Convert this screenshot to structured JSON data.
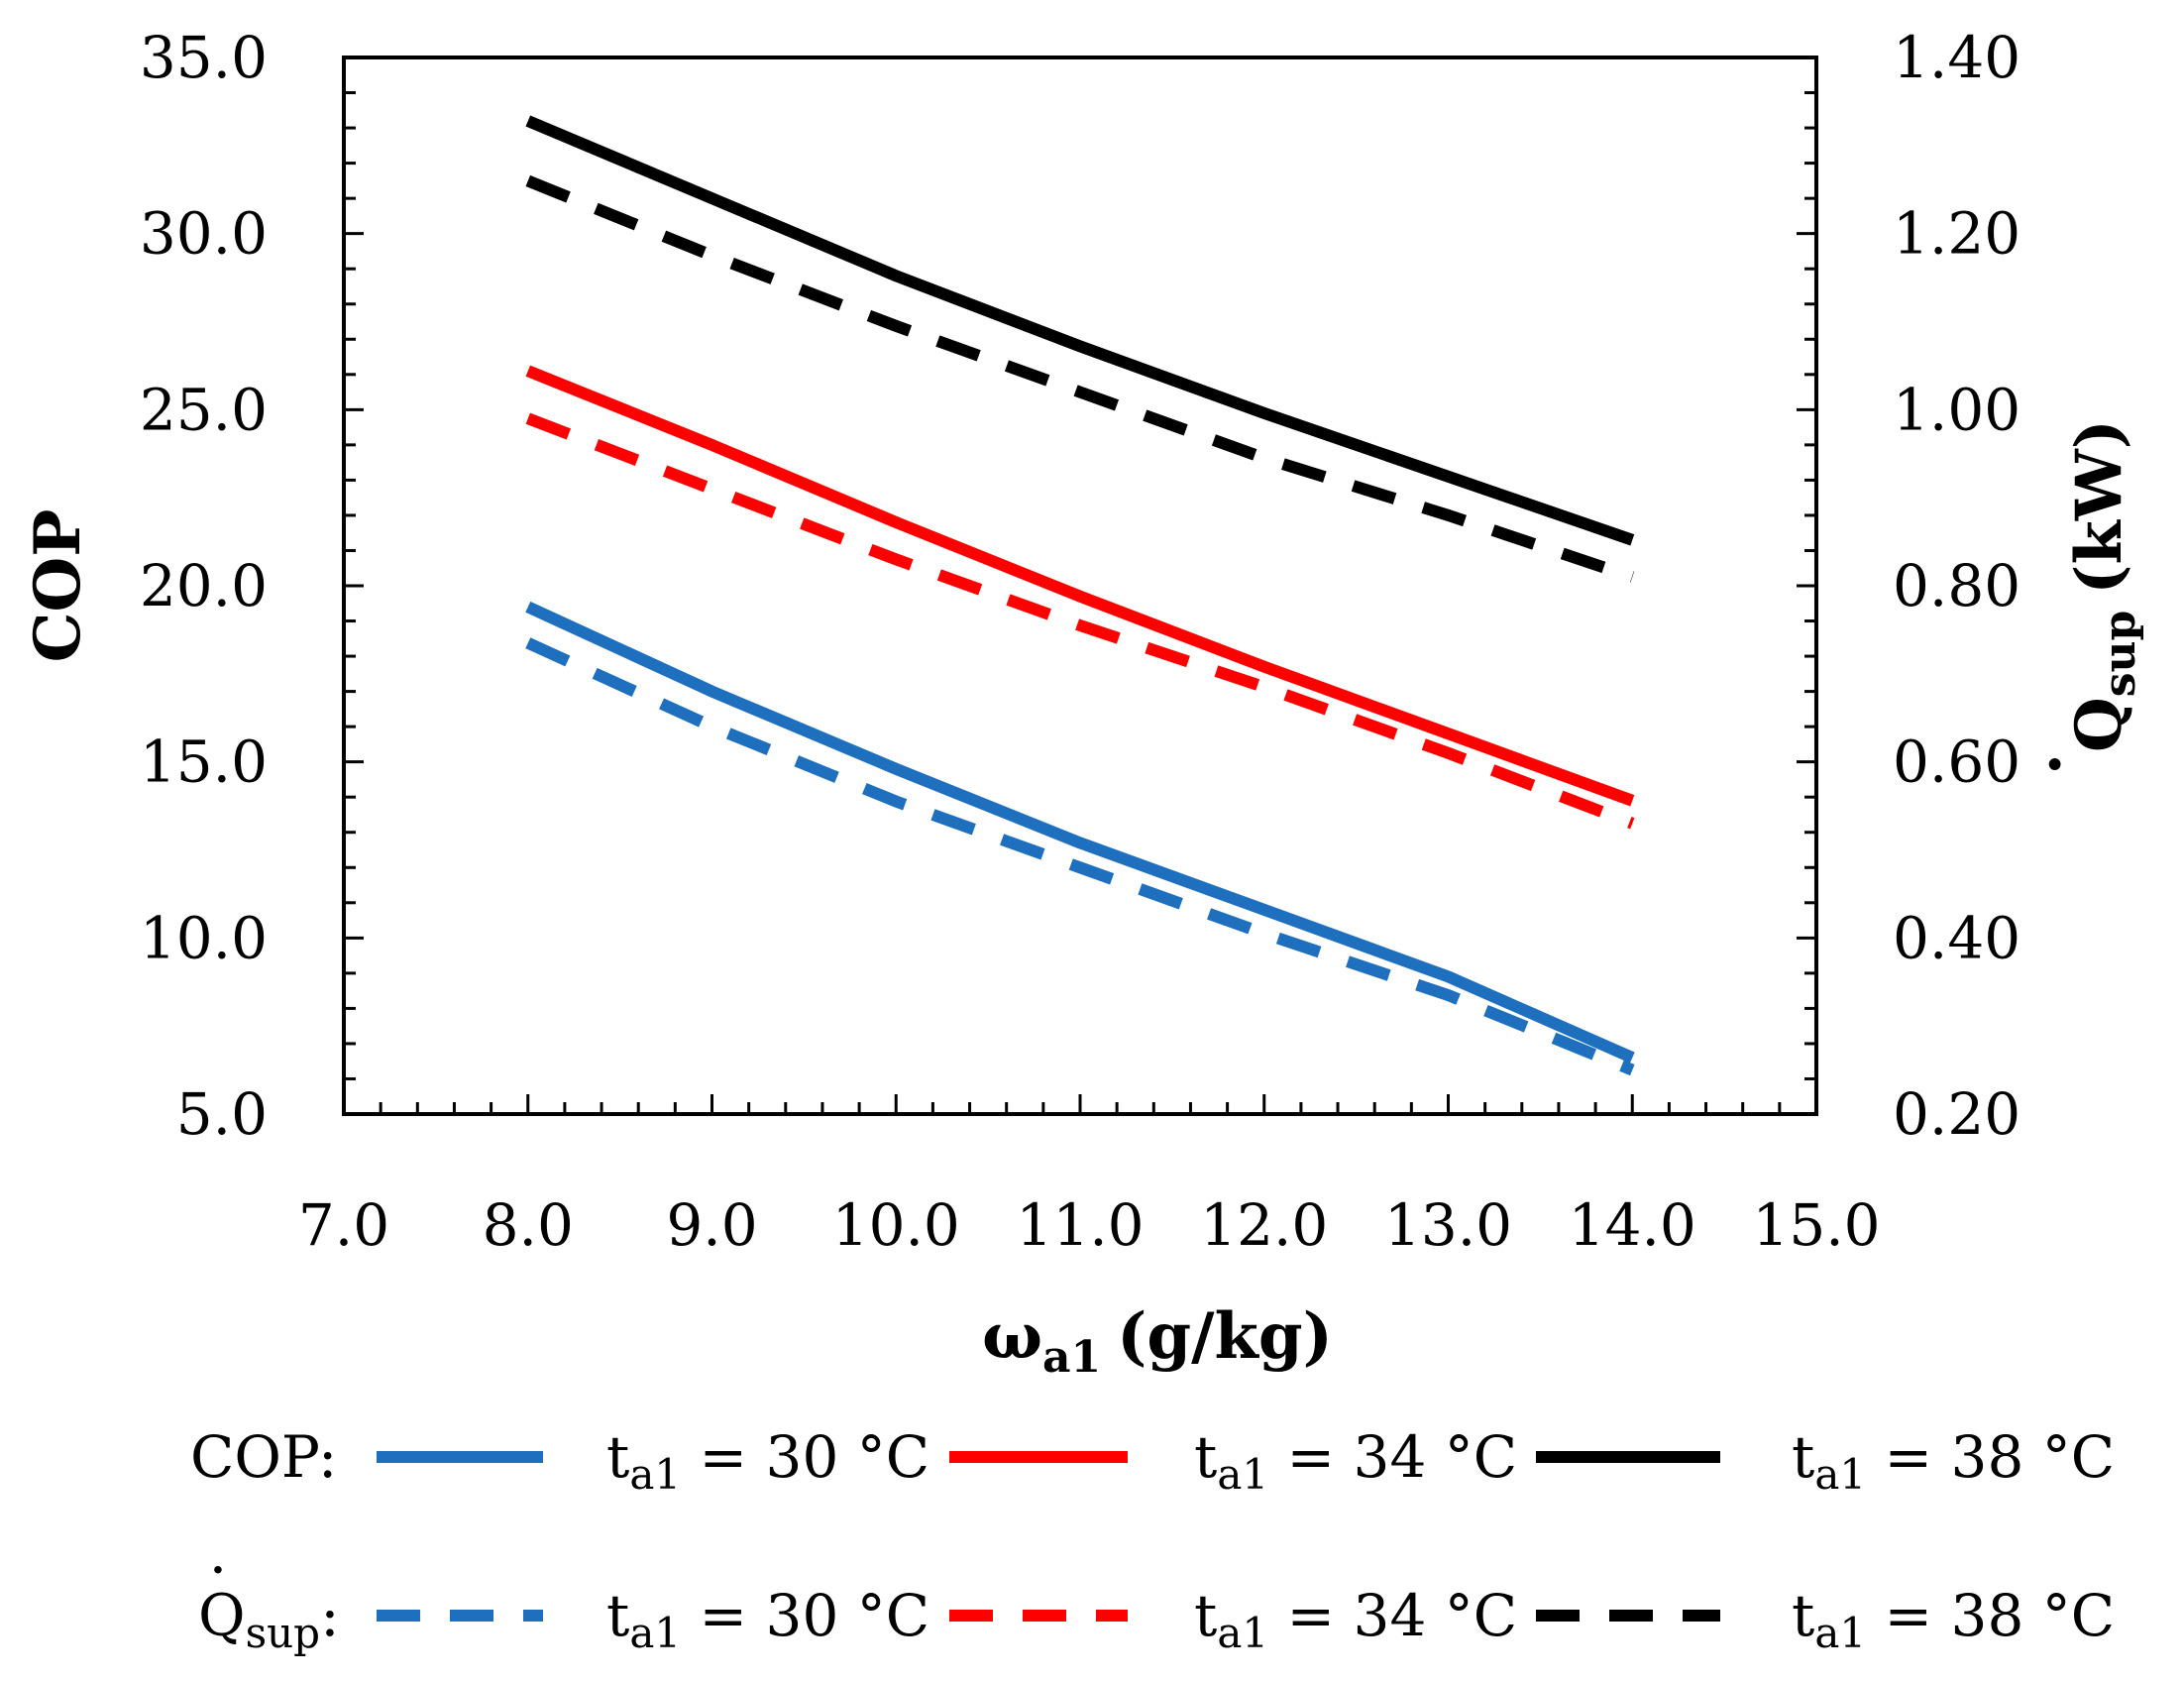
{
  "chart_data": {
    "type": "line",
    "x": [
      8,
      9,
      10,
      11,
      12,
      13,
      14
    ],
    "xlabel": {
      "main": "ω",
      "sub": "a1",
      "units": "(g/kg)"
    },
    "ylabel": "COP",
    "y2label": {
      "dot": "·",
      "main": "Q",
      "sub": "sup",
      "units": "(kW)"
    },
    "xlim": [
      7,
      15
    ],
    "ylim": [
      5,
      35
    ],
    "y2lim": [
      0.2,
      1.4
    ],
    "xticks": [
      "7.0",
      "8.0",
      "9.0",
      "10.0",
      "11.0",
      "12.0",
      "13.0",
      "14.0",
      "15.0"
    ],
    "yticks": [
      "5.0",
      "10.0",
      "15.0",
      "20.0",
      "25.0",
      "30.0",
      "35.0"
    ],
    "y2ticks": [
      "0.20",
      "0.40",
      "0.60",
      "0.80",
      "1.00",
      "1.20",
      "1.40"
    ],
    "series": [
      {
        "name": "COP t_a1 = 30 °C",
        "axis": "left",
        "style": "solid",
        "color": "#1f6fbf",
        "values": [
          19.4,
          17.0,
          14.8,
          12.7,
          10.8,
          8.9,
          6.6
        ]
      },
      {
        "name": "COP t_a1 = 34 °C",
        "axis": "left",
        "style": "solid",
        "color": "#ff0000",
        "values": [
          26.1,
          24.0,
          21.8,
          19.7,
          17.7,
          15.8,
          13.9
        ]
      },
      {
        "name": "COP t_a1 = 38 °C",
        "axis": "left",
        "style": "solid",
        "color": "#000000",
        "values": [
          33.2,
          31.0,
          28.8,
          26.8,
          24.9,
          23.1,
          21.3
        ]
      },
      {
        "name": "Qsup t_a1 = 30 °C",
        "axis": "right",
        "style": "dashed",
        "color": "#1f6fbf",
        "values": [
          0.735,
          0.64,
          0.555,
          0.48,
          0.405,
          0.335,
          0.25
        ]
      },
      {
        "name": "Qsup t_a1 = 34 °C",
        "axis": "right",
        "style": "dashed",
        "color": "#ff0000",
        "values": [
          0.99,
          0.91,
          0.83,
          0.755,
          0.685,
          0.61,
          0.53
        ]
      },
      {
        "name": "Qsup t_a1 = 38 °C",
        "axis": "right",
        "style": "dashed",
        "color": "#000000",
        "values": [
          1.26,
          1.175,
          1.095,
          1.02,
          0.945,
          0.88,
          0.81
        ]
      }
    ]
  },
  "legend": {
    "row1_label": "COP:",
    "row2_label": {
      "dot": "·",
      "main": "Q",
      "sub": "sup",
      "colon": ":"
    },
    "entries": [
      {
        "t": "t",
        "sub": "a1",
        "rest": " = 30 °C"
      },
      {
        "t": "t",
        "sub": "a1",
        "rest": " = 34 °C"
      },
      {
        "t": "t",
        "sub": "a1",
        "rest": " = 38 °C"
      }
    ]
  }
}
